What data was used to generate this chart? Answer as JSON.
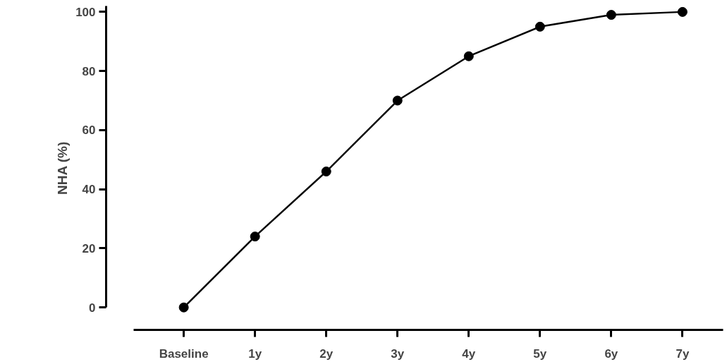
{
  "chart_data": {
    "type": "line",
    "ylabel": "NHA (%)",
    "categories": [
      "Baseline",
      "1y",
      "2y",
      "3y",
      "4y",
      "5y",
      "6y",
      "7y"
    ],
    "series": [
      {
        "color": "#000000",
        "values": [
          0,
          24,
          46,
          70,
          85,
          95,
          99,
          100
        ]
      }
    ],
    "ylim": [
      -7.6,
      102
    ],
    "yticks": [
      0,
      20,
      40,
      60,
      80,
      100
    ],
    "marker": "circle",
    "line_style": "solid",
    "grid": false
  }
}
